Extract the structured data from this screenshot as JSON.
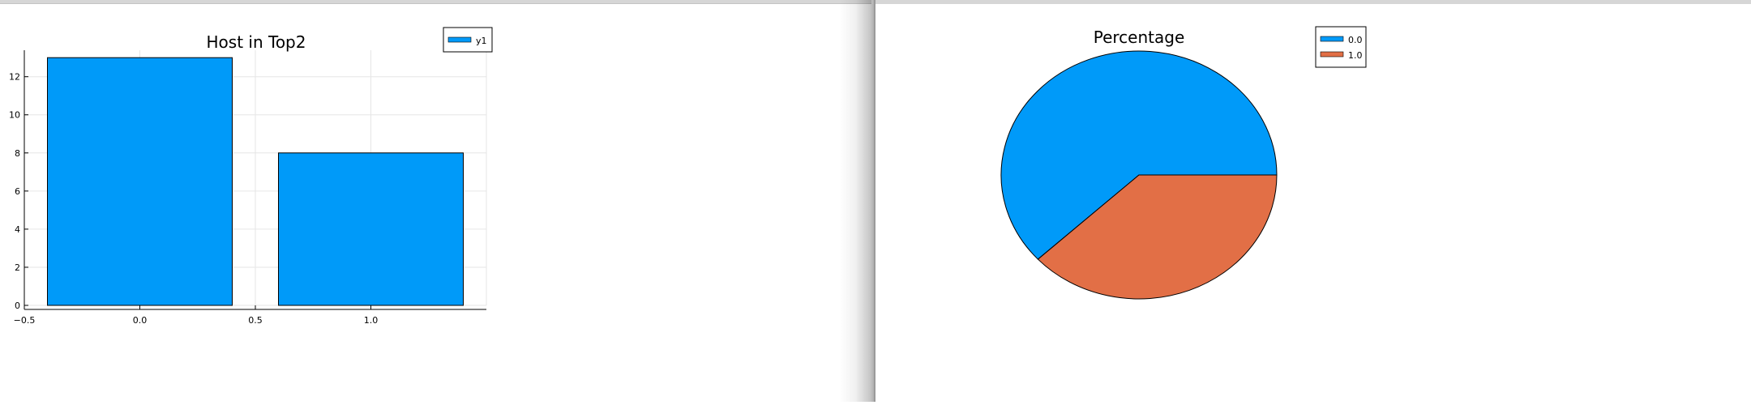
{
  "chart_data": [
    {
      "type": "bar",
      "title": "Host in Top2",
      "categories": [
        0.0,
        1.0
      ],
      "values": [
        13,
        8
      ],
      "series": [
        {
          "name": "y1",
          "values": [
            13,
            8
          ],
          "color": "#009af9"
        }
      ],
      "bar_width": 0.8,
      "xlim": [
        -0.5,
        1.5
      ],
      "ylim": [
        0,
        13.39
      ],
      "xticks": [
        -0.5,
        0.0,
        0.5,
        1.0
      ],
      "xtick_labels": [
        "−0.5",
        "0.0",
        "0.5",
        "1.0"
      ],
      "yticks": [
        0,
        2,
        4,
        6,
        8,
        10,
        12
      ],
      "ytick_labels": [
        "0",
        "2",
        "4",
        "6",
        "8",
        "10",
        "12"
      ],
      "grid": true,
      "legend": "top-right",
      "xlabel": "",
      "ylabel": ""
    },
    {
      "type": "pie",
      "title": "Percentage",
      "labels": [
        "0.0",
        "1.0"
      ],
      "values": [
        13,
        8
      ],
      "colors": [
        "#009af9",
        "#e26f46"
      ],
      "legend": "top-right"
    }
  ]
}
